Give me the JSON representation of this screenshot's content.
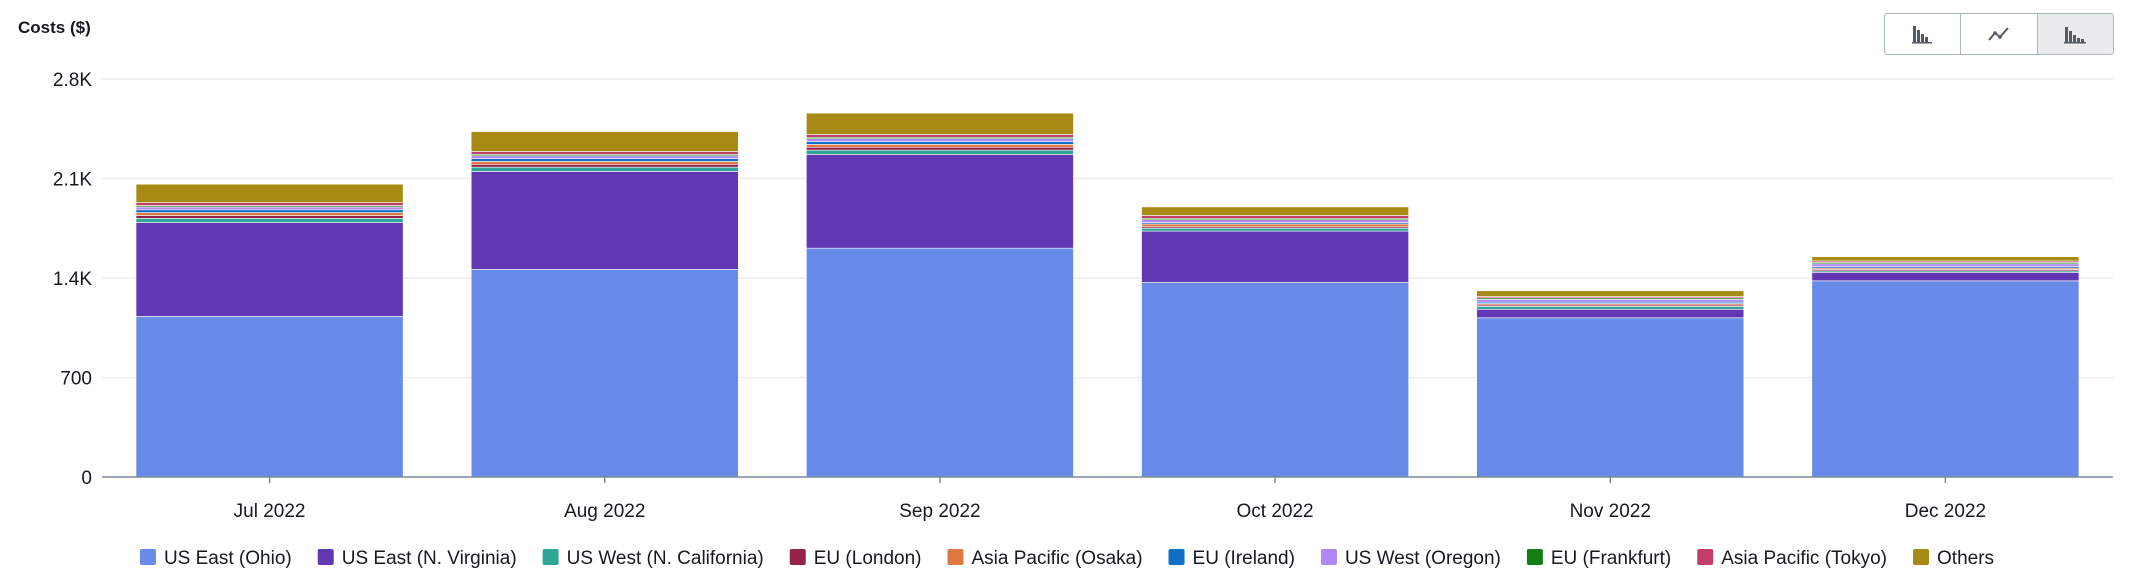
{
  "chart_data": {
    "type": "bar",
    "stacked": true,
    "ylabel": "Costs ($)",
    "xlabel": "",
    "ylim": [
      0,
      2800
    ],
    "yticks": [
      0,
      700,
      1400,
      2100,
      2800
    ],
    "ytick_labels": [
      "0",
      "700",
      "1.4K",
      "2.1K",
      "2.8K"
    ],
    "grid": true,
    "legend_position": "bottom",
    "categories": [
      "Jul 2022",
      "Aug 2022",
      "Sep 2022",
      "Oct 2022",
      "Nov 2022",
      "Dec 2022"
    ],
    "series": [
      {
        "name": "US East (Ohio)",
        "color": "#688ae8",
        "values": [
          1130,
          1460,
          1610,
          1370,
          1120,
          1380
        ]
      },
      {
        "name": "US East (N. Virginia)",
        "color": "#6237b3",
        "values": [
          660,
          690,
          660,
          360,
          60,
          60
        ]
      },
      {
        "name": "US West (N. California)",
        "color": "#2ea597",
        "values": [
          30,
          30,
          30,
          20,
          20,
          10
        ]
      },
      {
        "name": "EU (London)",
        "color": "#962249",
        "values": [
          20,
          20,
          20,
          10,
          10,
          10
        ]
      },
      {
        "name": "Asia Pacific (Osaka)",
        "color": "#e07941",
        "values": [
          20,
          20,
          20,
          20,
          10,
          10
        ]
      },
      {
        "name": "EU (Ireland)",
        "color": "#0f6fc5",
        "values": [
          20,
          20,
          20,
          10,
          10,
          10
        ]
      },
      {
        "name": "US West (Oregon)",
        "color": "#b088f5",
        "values": [
          20,
          20,
          20,
          20,
          20,
          20
        ]
      },
      {
        "name": "EU (Frankfurt)",
        "color": "#137e13",
        "values": [
          10,
          10,
          10,
          10,
          10,
          10
        ]
      },
      {
        "name": "Asia Pacific (Tokyo)",
        "color": "#c33d69",
        "values": [
          20,
          20,
          20,
          20,
          10,
          10
        ]
      },
      {
        "name": "Others",
        "color": "#a68a13",
        "values": [
          130,
          140,
          150,
          60,
          40,
          30
        ]
      }
    ]
  },
  "toggle": {
    "options": [
      {
        "icon": "grouped-bar-chart-icon"
      },
      {
        "icon": "line-chart-icon"
      },
      {
        "icon": "stacked-bar-chart-icon",
        "active": true
      }
    ]
  }
}
